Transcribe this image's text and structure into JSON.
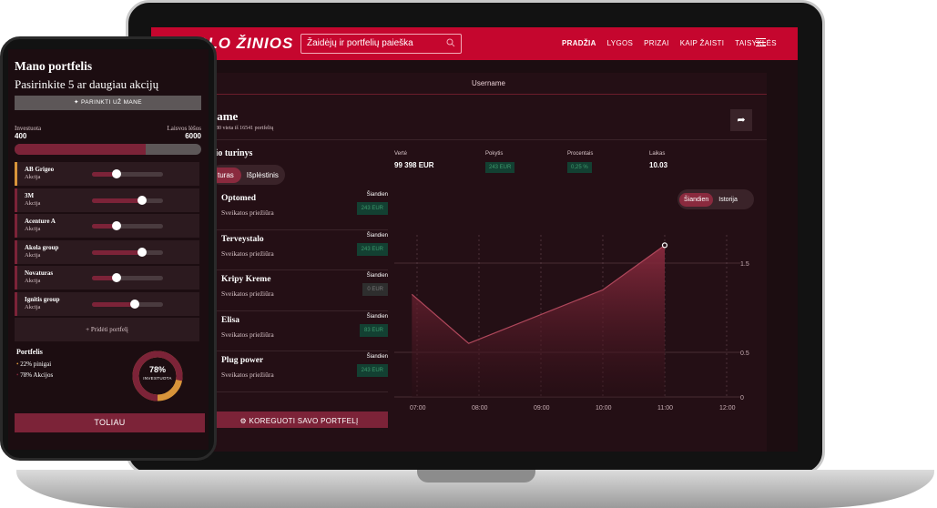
{
  "nav": {
    "logo": "SLO ŽINIOS",
    "search_placeholder": "Žaidėjų ir portfelių paieška",
    "links": [
      "PRADŽIA",
      "LYGOS",
      "PRIZAI",
      "KAIP ŽAISTI",
      "TAISYKLĖS"
    ]
  },
  "profile": {
    "panel_title": "Username",
    "username": "name",
    "rank_text": "1080 vieta iš 16541 portfelių",
    "section_title": "dio turinys",
    "toggle": [
      "turas",
      "Išplėstinis"
    ],
    "edit_button": "KOREGUOTI SAVO PORTFELĮ",
    "lower_title": "s"
  },
  "holdings": [
    {
      "name": "Optomed",
      "sector": "Sveikatos priežiūra",
      "day": "Šiandien",
      "value": "243 EUR",
      "zero": false
    },
    {
      "name": "Terveystalo",
      "sector": "Sveikatos priežiūra",
      "day": "Šiandien",
      "value": "243 EUR",
      "zero": false
    },
    {
      "name": "Kripy Kreme",
      "sector": "Sveikatos priežiūra",
      "day": "Šiandien",
      "value": "0 EUR",
      "zero": true
    },
    {
      "name": "Elisa",
      "sector": "Sveikatos priežiūra",
      "day": "Šiandien",
      "value": "83 EUR",
      "zero": false
    },
    {
      "name": "Plug power",
      "sector": "Sveikatos priežiūra",
      "day": "Šiandien",
      "value": "243 EUR",
      "zero": false
    }
  ],
  "stats": [
    {
      "label": "Vertė",
      "value": "99 398 EUR",
      "pill": false
    },
    {
      "label": "Pokytis",
      "value": "243 EUR",
      "pill": true
    },
    {
      "label": "Procentais",
      "value": "0,25 %",
      "pill": true
    },
    {
      "label": "Laikas",
      "value": "10.03",
      "pill": false
    }
  ],
  "chart_toggle": [
    "Šiandien",
    "Istorija"
  ],
  "chart_data": {
    "type": "area",
    "x": [
      "07:00",
      "08:00",
      "09:00",
      "10:00",
      "11:00",
      "12:00"
    ],
    "points": [
      {
        "t": "06:55",
        "y": 1.15
      },
      {
        "t": "07:50",
        "y": 0.6
      },
      {
        "t": "10:00",
        "y": 1.2
      },
      {
        "t": "11:00",
        "y": 1.7
      }
    ],
    "ytick_labels": [
      "1.5",
      "0.5",
      "0"
    ],
    "ylim": [
      0,
      1.8
    ],
    "grid": true,
    "color": "#7c2338"
  },
  "phone": {
    "title": "Mano portfelis",
    "subtitle": "Pasirinkite 5 ar daugiau akcijų",
    "pick_button": "PARINKTI UŽ MANE",
    "invested_label": "Investuota",
    "invested_value": "400",
    "free_label": "Laisvos lėšos",
    "free_value": "6000",
    "invested_fraction": 0.7,
    "stocks": [
      {
        "name": "AB Grigeo",
        "type": "Akcija",
        "level": 0.35,
        "accent": "#d8943a"
      },
      {
        "name": "3M",
        "type": "Akcija",
        "level": 0.7,
        "accent": "#7c2338"
      },
      {
        "name": "Acenture A",
        "type": "Akcija",
        "level": 0.35,
        "accent": "#7c2338"
      },
      {
        "name": "Akola group",
        "type": "Akcija",
        "level": 0.7,
        "accent": "#7c2338"
      },
      {
        "name": "Novaturas",
        "type": "Akcija",
        "level": 0.35,
        "accent": "#7c2338"
      },
      {
        "name": "Ignitis group",
        "type": "Akcija",
        "level": 0.6,
        "accent": "#7c2338"
      }
    ],
    "add_label": "+ Pridėti portfelį",
    "portfolio_label": "Portfelis",
    "legend": [
      "22% pinigai",
      "78% Akcijos"
    ],
    "donut_pct": "78%",
    "donut_label": "INVESTUOTA",
    "donut_value": 0.78,
    "next_button": "TOLIAU"
  }
}
